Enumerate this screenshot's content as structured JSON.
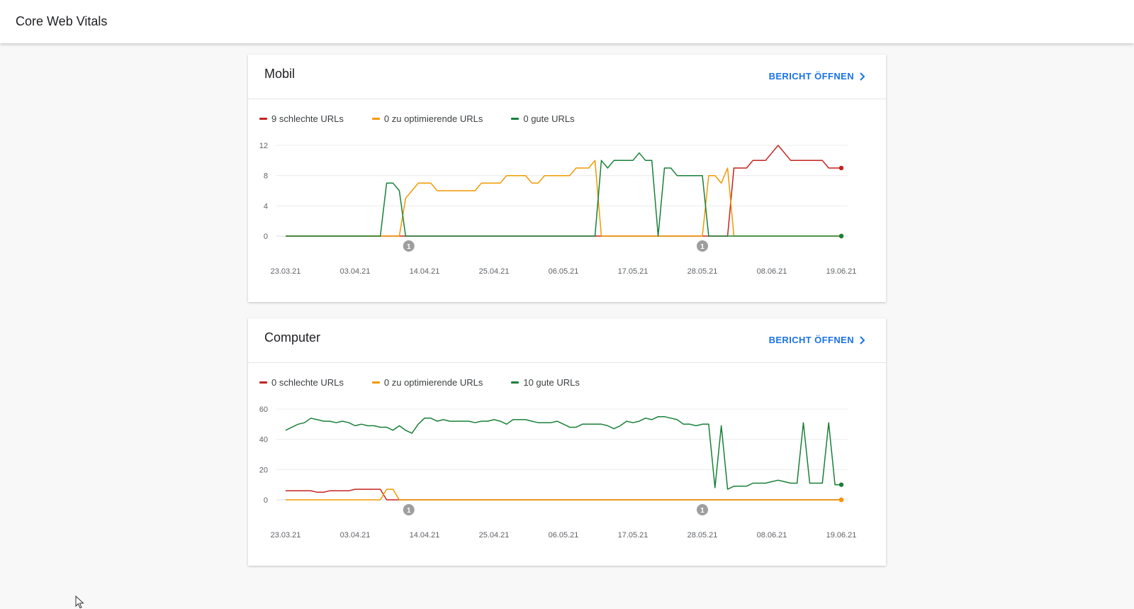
{
  "app": {
    "title": "Core Web Vitals"
  },
  "colors": {
    "poor": "#c5221f",
    "improve": "#f29900",
    "good": "#188038",
    "annotation": "#9e9e9e"
  },
  "x_tick_labels": [
    "23.03.21",
    "03.04.21",
    "14.04.21",
    "25.04.21",
    "06.05.21",
    "17.05.21",
    "28.05.21",
    "08.06.21",
    "19.06.21"
  ],
  "annotations": [
    {
      "date": "11.04.21",
      "label": "1"
    },
    {
      "date": "27.05.21",
      "label": "1"
    }
  ],
  "cards": [
    {
      "id": "mobile",
      "title": "Mobil",
      "link_label": "BERICHT ÖFFNEN",
      "legend": [
        "9 schlechte URLs",
        "0 zu optimierende URLs",
        "0 gute URLs"
      ],
      "chart_data": {
        "type": "line",
        "x_range": [
          "23.03.21",
          "19.06.21"
        ],
        "x_unit": "days",
        "ylim": [
          0,
          12
        ],
        "yticks": [
          0,
          4,
          8,
          12
        ],
        "grid": true,
        "series": [
          {
            "name": "9 schlechte URLs",
            "color": "#c5221f",
            "points": [
              [
                0,
                0
              ],
              [
                70,
                0
              ],
              [
                71,
                9
              ],
              [
                72,
                9
              ],
              [
                73,
                9
              ],
              [
                74,
                10
              ],
              [
                76,
                10
              ],
              [
                77,
                11
              ],
              [
                78,
                12
              ],
              [
                79,
                11
              ],
              [
                80,
                10
              ],
              [
                85,
                10
              ],
              [
                86,
                9
              ],
              [
                88,
                9
              ]
            ]
          },
          {
            "name": "0 zu optimierende URLs",
            "color": "#f29900",
            "points": [
              [
                0,
                0
              ],
              [
                18,
                0
              ],
              [
                19,
                5
              ],
              [
                20,
                6
              ],
              [
                21,
                7
              ],
              [
                23,
                7
              ],
              [
                24,
                6
              ],
              [
                30,
                6
              ],
              [
                31,
                7
              ],
              [
                34,
                7
              ],
              [
                35,
                8
              ],
              [
                38,
                8
              ],
              [
                39,
                7
              ],
              [
                40,
                7
              ],
              [
                41,
                8
              ],
              [
                45,
                8
              ],
              [
                46,
                9
              ],
              [
                48,
                9
              ],
              [
                49,
                10
              ],
              [
                50,
                0
              ],
              [
                66,
                0
              ],
              [
                67,
                8
              ],
              [
                68,
                8
              ],
              [
                69,
                7
              ],
              [
                70,
                9
              ],
              [
                71,
                0
              ],
              [
                88,
                0
              ]
            ]
          },
          {
            "name": "0 gute URLs",
            "color": "#188038",
            "points": [
              [
                0,
                0
              ],
              [
                15,
                0
              ],
              [
                16,
                7
              ],
              [
                17,
                7
              ],
              [
                18,
                6
              ],
              [
                19,
                0
              ],
              [
                49,
                0
              ],
              [
                50,
                10
              ],
              [
                51,
                9
              ],
              [
                52,
                10
              ],
              [
                55,
                10
              ],
              [
                56,
                11
              ],
              [
                57,
                10
              ],
              [
                58,
                10
              ],
              [
                59,
                0
              ],
              [
                60,
                9
              ],
              [
                61,
                9
              ],
              [
                62,
                8
              ],
              [
                66,
                8
              ],
              [
                67,
                0
              ],
              [
                88,
                0
              ]
            ]
          }
        ]
      }
    },
    {
      "id": "computer",
      "title": "Computer",
      "link_label": "BERICHT ÖFFNEN",
      "legend": [
        "0 schlechte URLs",
        "0 zu optimierende URLs",
        "10 gute URLs"
      ],
      "chart_data": {
        "type": "line",
        "x_range": [
          "23.03.21",
          "19.06.21"
        ],
        "x_unit": "days",
        "ylim": [
          0,
          60
        ],
        "yticks": [
          0,
          20,
          40,
          60
        ],
        "grid": true,
        "series": [
          {
            "name": "0 schlechte URLs",
            "color": "#c5221f",
            "points": [
              [
                0,
                6
              ],
              [
                4,
                6
              ],
              [
                5,
                5
              ],
              [
                6,
                5
              ],
              [
                7,
                6
              ],
              [
                10,
                6
              ],
              [
                11,
                7
              ],
              [
                15,
                7
              ],
              [
                16,
                0
              ],
              [
                88,
                0
              ]
            ]
          },
          {
            "name": "0 zu optimierende URLs",
            "color": "#f29900",
            "points": [
              [
                0,
                0
              ],
              [
                15,
                0
              ],
              [
                16,
                7
              ],
              [
                17,
                7
              ],
              [
                18,
                0
              ],
              [
                88,
                0
              ]
            ]
          },
          {
            "name": "10 gute URLs",
            "color": "#188038",
            "points": [
              [
                0,
                46
              ],
              [
                1,
                48
              ],
              [
                2,
                50
              ],
              [
                3,
                51
              ],
              [
                4,
                54
              ],
              [
                5,
                53
              ],
              [
                6,
                52
              ],
              [
                7,
                52
              ],
              [
                8,
                51
              ],
              [
                9,
                52
              ],
              [
                10,
                51
              ],
              [
                11,
                49
              ],
              [
                12,
                50
              ],
              [
                13,
                49
              ],
              [
                14,
                49
              ],
              [
                15,
                48
              ],
              [
                16,
                48
              ],
              [
                17,
                46
              ],
              [
                18,
                49
              ],
              [
                19,
                46
              ],
              [
                20,
                44
              ],
              [
                21,
                50
              ],
              [
                22,
                54
              ],
              [
                23,
                54
              ],
              [
                24,
                52
              ],
              [
                25,
                53
              ],
              [
                26,
                52
              ],
              [
                29,
                52
              ],
              [
                30,
                51
              ],
              [
                31,
                52
              ],
              [
                32,
                52
              ],
              [
                33,
                53
              ],
              [
                34,
                52
              ],
              [
                35,
                50
              ],
              [
                36,
                53
              ],
              [
                38,
                53
              ],
              [
                39,
                52
              ],
              [
                40,
                51
              ],
              [
                42,
                51
              ],
              [
                43,
                52
              ],
              [
                44,
                50
              ],
              [
                45,
                48
              ],
              [
                46,
                48
              ],
              [
                47,
                50
              ],
              [
                50,
                50
              ],
              [
                51,
                49
              ],
              [
                52,
                47
              ],
              [
                53,
                49
              ],
              [
                54,
                52
              ],
              [
                55,
                51
              ],
              [
                56,
                52
              ],
              [
                57,
                54
              ],
              [
                58,
                53
              ],
              [
                59,
                55
              ],
              [
                60,
                55
              ],
              [
                61,
                54
              ],
              [
                62,
                53
              ],
              [
                63,
                50
              ],
              [
                64,
                50
              ],
              [
                65,
                49
              ],
              [
                66,
                50
              ],
              [
                67,
                50
              ],
              [
                68,
                8
              ],
              [
                69,
                49
              ],
              [
                70,
                7
              ],
              [
                71,
                9
              ],
              [
                73,
                9
              ],
              [
                74,
                11
              ],
              [
                76,
                11
              ],
              [
                77,
                12
              ],
              [
                78,
                13
              ],
              [
                79,
                12
              ],
              [
                80,
                11
              ],
              [
                81,
                11
              ],
              [
                82,
                51
              ],
              [
                83,
                11
              ],
              [
                85,
                11
              ],
              [
                86,
                51
              ],
              [
                87,
                10
              ],
              [
                88,
                10
              ]
            ]
          }
        ]
      }
    }
  ]
}
